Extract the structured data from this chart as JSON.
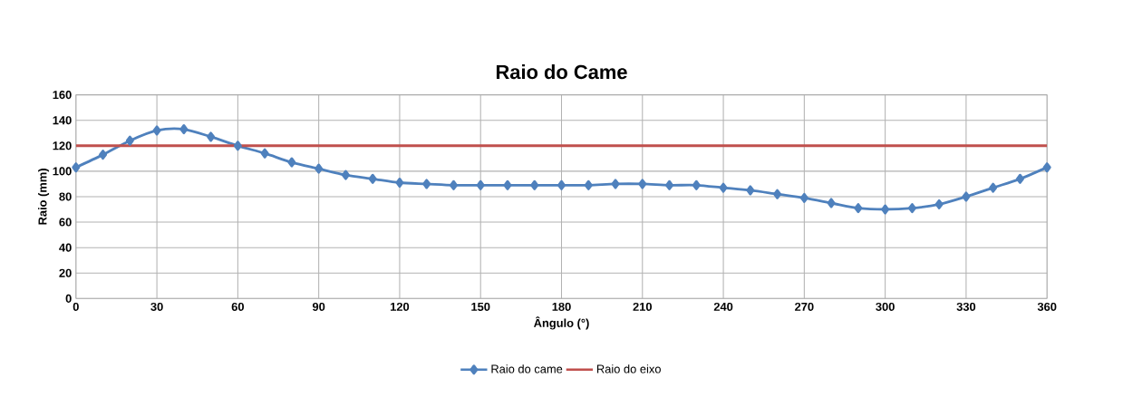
{
  "chart_data": {
    "type": "line",
    "title": "Raio do Came",
    "xlabel": "Ângulo (°)",
    "ylabel": "Raio (mm)",
    "x": [
      0,
      10,
      20,
      30,
      40,
      50,
      60,
      70,
      80,
      90,
      100,
      110,
      120,
      130,
      140,
      150,
      160,
      170,
      180,
      190,
      200,
      210,
      220,
      230,
      240,
      250,
      260,
      270,
      280,
      290,
      300,
      310,
      320,
      330,
      340,
      350,
      360
    ],
    "series": [
      {
        "name": "Raio do came",
        "color": "#4f81bd",
        "marker": "diamond",
        "values": [
          103,
          113,
          124,
          132,
          133,
          127,
          120,
          114,
          107,
          102,
          97,
          94,
          91,
          90,
          89,
          89,
          89,
          89,
          89,
          89,
          90,
          90,
          89,
          89,
          87,
          85,
          82,
          79,
          75,
          71,
          70,
          71,
          74,
          80,
          87,
          94,
          103
        ]
      },
      {
        "name": "Raio do eixo",
        "color": "#c0504d",
        "marker": "none",
        "x": [
          0,
          360
        ],
        "values": [
          120,
          120
        ]
      }
    ],
    "xlim": [
      0,
      360
    ],
    "xticks": [
      0,
      30,
      60,
      90,
      120,
      150,
      180,
      210,
      240,
      270,
      300,
      330,
      360
    ],
    "ylim": [
      0,
      160
    ],
    "yticks": [
      0,
      20,
      40,
      60,
      80,
      100,
      120,
      140,
      160
    ],
    "grid": true,
    "legend": "bottom",
    "line_style": "solid"
  }
}
